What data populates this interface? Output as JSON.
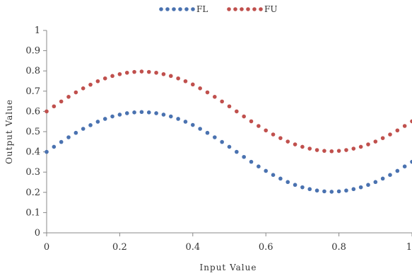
{
  "chart_data": {
    "type": "scatter",
    "title": "",
    "xlabel": "Input Value",
    "ylabel": "Output Value",
    "xlim": [
      0,
      1
    ],
    "ylim": [
      0,
      1
    ],
    "x_ticks": [
      "0",
      "0.2",
      "0.4",
      "0.6",
      "0.8",
      "1"
    ],
    "y_ticks": [
      "0",
      "0.1",
      "0.2",
      "0.3",
      "0.4",
      "0.5",
      "0.6",
      "0.7",
      "0.8",
      "0.9",
      "1"
    ],
    "grid": false,
    "legend_position": "top",
    "series": [
      {
        "name": "FL",
        "color": "#4a72b0",
        "x": [
          0,
          0.02,
          0.04,
          0.06,
          0.08,
          0.1,
          0.12,
          0.14,
          0.16,
          0.18,
          0.2,
          0.22,
          0.24,
          0.26,
          0.28,
          0.3,
          0.32,
          0.34,
          0.36,
          0.38,
          0.4,
          0.42,
          0.44,
          0.46,
          0.48,
          0.5,
          0.52,
          0.54,
          0.56,
          0.58,
          0.6,
          0.62,
          0.64,
          0.66,
          0.68,
          0.7,
          0.72,
          0.74,
          0.76,
          0.78,
          0.8,
          0.82,
          0.84,
          0.86,
          0.88,
          0.9,
          0.92,
          0.94,
          0.96,
          0.98,
          1
        ],
        "y": [
          0.4,
          0.425,
          0.449,
          0.472,
          0.494,
          0.514,
          0.532,
          0.549,
          0.563,
          0.575,
          0.584,
          0.591,
          0.595,
          0.597,
          0.595,
          0.591,
          0.584,
          0.575,
          0.563,
          0.549,
          0.533,
          0.514,
          0.494,
          0.472,
          0.449,
          0.425,
          0.4,
          0.375,
          0.351,
          0.328,
          0.306,
          0.286,
          0.268,
          0.251,
          0.237,
          0.225,
          0.216,
          0.209,
          0.205,
          0.203,
          0.205,
          0.209,
          0.216,
          0.225,
          0.237,
          0.251,
          0.268,
          0.286,
          0.306,
          0.328,
          0.351
        ]
      },
      {
        "name": "FU",
        "color": "#c0504d",
        "x": [
          0,
          0.02,
          0.04,
          0.06,
          0.08,
          0.1,
          0.12,
          0.14,
          0.16,
          0.18,
          0.2,
          0.22,
          0.24,
          0.26,
          0.28,
          0.3,
          0.32,
          0.34,
          0.36,
          0.38,
          0.4,
          0.42,
          0.44,
          0.46,
          0.48,
          0.5,
          0.52,
          0.54,
          0.56,
          0.58,
          0.6,
          0.62,
          0.64,
          0.66,
          0.68,
          0.7,
          0.72,
          0.74,
          0.76,
          0.78,
          0.8,
          0.82,
          0.84,
          0.86,
          0.88,
          0.9,
          0.92,
          0.94,
          0.96,
          0.98,
          1
        ],
        "y": [
          0.6,
          0.625,
          0.649,
          0.672,
          0.694,
          0.714,
          0.732,
          0.749,
          0.763,
          0.775,
          0.784,
          0.791,
          0.795,
          0.797,
          0.795,
          0.791,
          0.784,
          0.775,
          0.763,
          0.749,
          0.733,
          0.714,
          0.694,
          0.672,
          0.649,
          0.625,
          0.6,
          0.575,
          0.551,
          0.528,
          0.506,
          0.486,
          0.468,
          0.451,
          0.437,
          0.425,
          0.416,
          0.409,
          0.405,
          0.403,
          0.405,
          0.409,
          0.416,
          0.425,
          0.437,
          0.451,
          0.468,
          0.486,
          0.506,
          0.528,
          0.551
        ]
      }
    ]
  }
}
